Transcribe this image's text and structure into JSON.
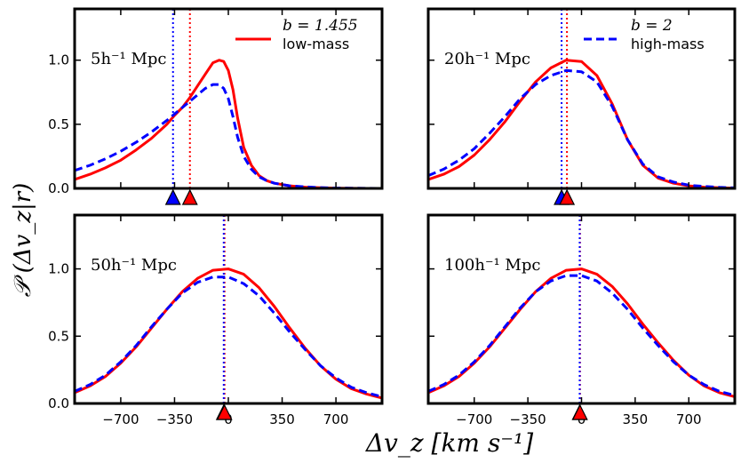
{
  "figure": {
    "ylabel": "𝒫 (Δv_z|r)",
    "xlabel": "Δv_z [km s⁻¹]",
    "xlim": [
      -1000,
      1000
    ],
    "ylim": [
      0.0,
      1.4
    ],
    "yticks": [
      0.0,
      0.5,
      1.0
    ],
    "xticks": [
      -700,
      -350,
      0,
      350,
      700
    ]
  },
  "legend": [
    {
      "title": "b = 1.455",
      "label": "low-mass",
      "color": "#ff0000",
      "style": "solid"
    },
    {
      "title": "b = 2",
      "label": "high-mass",
      "color": "#0000ff",
      "style": "dashed"
    }
  ],
  "chart_data": [
    {
      "type": "line",
      "title": "5h⁻¹ Mpc",
      "x": [
        -1000,
        -900,
        -800,
        -700,
        -600,
        -500,
        -400,
        -350,
        -300,
        -250,
        -200,
        -150,
        -100,
        -60,
        -30,
        0,
        30,
        60,
        100,
        150,
        200,
        250,
        300,
        400,
        500,
        600,
        700,
        800,
        900,
        1000
      ],
      "series": [
        {
          "name": "low-mass",
          "values": [
            0.07,
            0.11,
            0.16,
            0.22,
            0.3,
            0.39,
            0.5,
            0.57,
            0.63,
            0.71,
            0.8,
            0.89,
            0.98,
            1.0,
            0.99,
            0.92,
            0.77,
            0.55,
            0.32,
            0.18,
            0.1,
            0.06,
            0.04,
            0.02,
            0.01,
            0.005,
            0.002,
            0.001,
            0.0,
            0.0
          ]
        },
        {
          "name": "high-mass",
          "values": [
            0.14,
            0.18,
            0.23,
            0.29,
            0.36,
            0.44,
            0.53,
            0.58,
            0.63,
            0.68,
            0.73,
            0.78,
            0.81,
            0.81,
            0.78,
            0.7,
            0.56,
            0.4,
            0.25,
            0.15,
            0.09,
            0.06,
            0.04,
            0.02,
            0.012,
            0.006,
            0.003,
            0.002,
            0.001,
            0.0
          ]
        }
      ],
      "markers": [
        {
          "series": "low-mass",
          "x": -250
        },
        {
          "series": "high-mass",
          "x": -360
        }
      ]
    },
    {
      "type": "line",
      "title": "20h⁻¹ Mpc",
      "x": [
        -1000,
        -900,
        -800,
        -700,
        -600,
        -500,
        -400,
        -300,
        -200,
        -100,
        0,
        100,
        200,
        300,
        400,
        500,
        600,
        700,
        800,
        900,
        1000
      ],
      "series": [
        {
          "name": "low-mass",
          "values": [
            0.07,
            0.11,
            0.17,
            0.26,
            0.38,
            0.52,
            0.68,
            0.83,
            0.94,
            1.0,
            0.99,
            0.88,
            0.66,
            0.38,
            0.18,
            0.08,
            0.04,
            0.02,
            0.01,
            0.005,
            0.002
          ]
        },
        {
          "name": "high-mass",
          "values": [
            0.1,
            0.15,
            0.22,
            0.31,
            0.43,
            0.56,
            0.7,
            0.81,
            0.88,
            0.92,
            0.91,
            0.83,
            0.64,
            0.38,
            0.19,
            0.09,
            0.05,
            0.025,
            0.015,
            0.008,
            0.004
          ]
        }
      ],
      "markers": [
        {
          "series": "low-mass",
          "x": -95
        },
        {
          "series": "high-mass",
          "x": -130
        }
      ]
    },
    {
      "type": "line",
      "title": "50h⁻¹ Mpc",
      "x": [
        -1000,
        -900,
        -800,
        -700,
        -600,
        -500,
        -400,
        -300,
        -200,
        -100,
        0,
        100,
        200,
        300,
        400,
        500,
        600,
        700,
        800,
        900,
        1000
      ],
      "series": [
        {
          "name": "low-mass",
          "values": [
            0.08,
            0.13,
            0.2,
            0.3,
            0.42,
            0.56,
            0.7,
            0.83,
            0.93,
            0.99,
            1.0,
            0.96,
            0.86,
            0.72,
            0.56,
            0.41,
            0.28,
            0.18,
            0.11,
            0.07,
            0.04
          ]
        },
        {
          "name": "high-mass",
          "values": [
            0.09,
            0.14,
            0.21,
            0.31,
            0.43,
            0.57,
            0.7,
            0.82,
            0.9,
            0.94,
            0.94,
            0.89,
            0.8,
            0.67,
            0.53,
            0.4,
            0.28,
            0.19,
            0.12,
            0.08,
            0.05
          ]
        }
      ],
      "markers": [
        {
          "series": "low-mass",
          "x": -25
        },
        {
          "series": "high-mass",
          "x": -30
        }
      ]
    },
    {
      "type": "line",
      "title": "100h⁻¹ Mpc",
      "x": [
        -1000,
        -900,
        -800,
        -700,
        -600,
        -500,
        -400,
        -300,
        -200,
        -100,
        0,
        100,
        200,
        300,
        400,
        500,
        600,
        700,
        800,
        900,
        1000
      ],
      "series": [
        {
          "name": "low-mass",
          "values": [
            0.08,
            0.13,
            0.2,
            0.3,
            0.42,
            0.56,
            0.7,
            0.83,
            0.93,
            0.99,
            1.0,
            0.96,
            0.87,
            0.74,
            0.59,
            0.45,
            0.32,
            0.21,
            0.13,
            0.08,
            0.05
          ]
        },
        {
          "name": "high-mass",
          "values": [
            0.09,
            0.14,
            0.21,
            0.31,
            0.43,
            0.57,
            0.71,
            0.83,
            0.91,
            0.95,
            0.95,
            0.91,
            0.82,
            0.7,
            0.56,
            0.43,
            0.31,
            0.21,
            0.14,
            0.09,
            0.06
          ]
        }
      ],
      "markers": [
        {
          "series": "low-mass",
          "x": -10
        },
        {
          "series": "high-mass",
          "x": -12
        }
      ]
    }
  ]
}
